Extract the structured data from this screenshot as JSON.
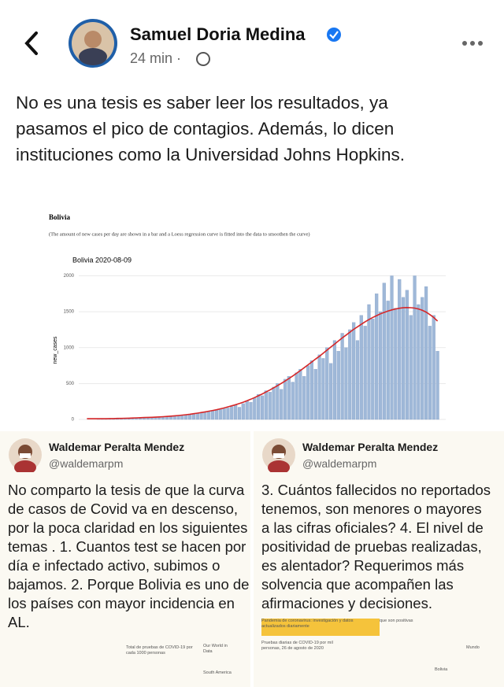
{
  "header": {
    "author": "Samuel Doria Medina",
    "time": "24 min ·"
  },
  "post": {
    "text_lines": [
      "No es una tesis es saber leer los resultados, ya",
      "pasamos el pico de contagios. Además, lo dicen",
      "instituciones como la Universidad Johns Hopkins."
    ]
  },
  "chart_data": {
    "type": "bar",
    "title": "Bolivia",
    "subtitle": "(The amount of new cases per day are shown in a bar and a Loess regression curve is fitted into the data to smoothen the curve)",
    "plot_title": "Bolivia 2020-08-09",
    "y_label": "new_cases",
    "color": "#9fb8d8",
    "trend_color": "#d62728",
    "values": [
      0,
      0,
      0,
      1,
      2,
      3,
      3,
      5,
      5,
      8,
      10,
      10,
      12,
      15,
      18,
      20,
      22,
      25,
      28,
      30,
      32,
      35,
      40,
      45,
      50,
      55,
      60,
      70,
      80,
      85,
      95,
      100,
      110,
      120,
      130,
      140,
      150,
      160,
      180,
      200,
      170,
      220,
      260,
      240,
      300,
      350,
      330,
      400,
      380,
      450,
      500,
      420,
      560,
      600,
      520,
      650,
      700,
      600,
      750,
      820,
      700,
      900,
      850,
      1000,
      780,
      1100,
      950,
      1200,
      1000,
      1250,
      1350,
      1100,
      1450,
      1300,
      1600,
      1400,
      1750,
      1500,
      1900,
      1650,
      2000,
      1550,
      1950,
      1700,
      1800,
      1450,
      2000,
      1600,
      1700,
      1850,
      1300,
      1450,
      950
    ],
    "trend_values": [
      10,
      10,
      10,
      10,
      10,
      10,
      12,
      12,
      14,
      14,
      16,
      18,
      20,
      22,
      24,
      26,
      28,
      30,
      32,
      35,
      38,
      42,
      46,
      50,
      55,
      60,
      66,
      72,
      80,
      88,
      96,
      105,
      115,
      125,
      135,
      148,
      160,
      175,
      190,
      205,
      222,
      240,
      260,
      282,
      305,
      330,
      355,
      382,
      410,
      440,
      470,
      502,
      535,
      570,
      605,
      642,
      680,
      720,
      760,
      800,
      840,
      880,
      922,
      965,
      1008,
      1050,
      1092,
      1135,
      1175,
      1215,
      1255,
      1290,
      1325,
      1360,
      1390,
      1420,
      1445,
      1470,
      1490,
      1510,
      1525,
      1538,
      1548,
      1555,
      1558,
      1556,
      1550,
      1538,
      1520,
      1495,
      1460,
      1420,
      1370
    ],
    "ylim": [
      0,
      2060
    ],
    "yticks": [
      0,
      500,
      1000,
      1500,
      2000
    ],
    "grid": true
  },
  "tweets": [
    {
      "name": "Waldemar Peralta Mendez",
      "handle": "@waldemarpm",
      "text_lines": [
        "No comparto la tesis de que la curva",
        "de casos de Covid va en descenso,",
        "por la poca claridad en los siguientes",
        "temas . 1. Cuantos test se hacen por",
        "día e infectado activo, subimos o",
        "bajamos. 2. Porque Bolivia es uno de",
        "los países con mayor incidencia en",
        "AL."
      ],
      "thumb_texts": [
        "Total de pruebas de COVID-19 por cada 1000 personas",
        "Our World in Data",
        "South America"
      ]
    },
    {
      "name": "Waldemar Peralta Mendez",
      "handle": "@waldemarpm",
      "text_lines": [
        "3. Cuántos fallecidos no reportados",
        "tenemos, son menores o mayores",
        "a las cifras oficiales? 4. El nivel de",
        "positividad de pruebas realizadas,",
        "es alentador? Requerimos más",
        "solvencia que acompañen las",
        "afirmaciones y decisiones."
      ],
      "thumb_texts": [
        "Pandemia de coronavirus: investigación y datos actualizados diariamente",
        "Pruebas diarias de COVID-19 por mil personas, 26 de agosto de 2020",
        "que son positivas",
        "Mundo",
        "Bolivia"
      ]
    }
  ]
}
